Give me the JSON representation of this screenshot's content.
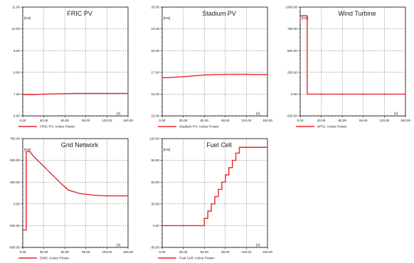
{
  "chart_data": [
    {
      "type": "line",
      "title": "FRIC PV",
      "unit_label": "[kW]",
      "x_unit_label": "[s]",
      "xlim": [
        0,
        150
      ],
      "ylim": [
        6,
        11
      ],
      "x_ticks": [
        "0.00",
        "30.00",
        "60.00",
        "90.00",
        "120.00",
        "150.00"
      ],
      "y_ticks": [
        "6.00",
        "7.00",
        "8.00",
        "9.00",
        "10.00",
        "11.00"
      ],
      "legend": "FRIC PV: Active Power",
      "color": "#e8252b",
      "series": [
        {
          "name": "FRIC PV: Active Power",
          "x": [
            0,
            15,
            30,
            45,
            60,
            75,
            90,
            105,
            120,
            135,
            150
          ],
          "y": [
            6.98,
            6.98,
            7.0,
            7.01,
            7.02,
            7.03,
            7.03,
            7.03,
            7.03,
            7.03,
            7.03
          ]
        }
      ]
    },
    {
      "type": "line",
      "title": "Stadium PV",
      "unit_label": "[kW]",
      "x_unit_label": "[s]",
      "xlim": [
        0,
        150
      ],
      "ylim": [
        15,
        20
      ],
      "x_ticks": [
        "0.00",
        "30.00",
        "60.00",
        "90.00",
        "120.00",
        "150.00"
      ],
      "y_ticks": [
        "15.00",
        "16.00",
        "17.00",
        "18.00",
        "19.00",
        "20.00"
      ],
      "legend": "Stadium PV: Active Power",
      "color": "#e8252b",
      "series": [
        {
          "name": "Stadium PV: Active Power",
          "x": [
            0,
            15,
            30,
            45,
            60,
            75,
            90,
            105,
            120,
            135,
            150
          ],
          "y": [
            16.75,
            16.77,
            16.8,
            16.84,
            16.88,
            16.9,
            16.91,
            16.91,
            16.91,
            16.9,
            16.9
          ]
        }
      ]
    },
    {
      "type": "line",
      "title": "Wind Turbine",
      "unit_label": "[kW]",
      "x_unit_label": "[s]",
      "xlim": [
        0,
        150
      ],
      "ylim": [
        -250,
        1000
      ],
      "x_ticks": [
        "0.00",
        "30.00",
        "60.00",
        "90.00",
        "120.00",
        "150.00"
      ],
      "y_ticks": [
        "-250.00",
        "0.00",
        "250.00",
        "500.00",
        "750.00",
        "1000.00"
      ],
      "legend": "WTG: Active Power",
      "color": "#e8252b",
      "series": [
        {
          "name": "WTG: Active Power",
          "x": [
            0,
            10,
            10,
            150
          ],
          "y": [
            900,
            900,
            0,
            0
          ]
        }
      ]
    },
    {
      "type": "line",
      "title": "Grid Network",
      "unit_label": "[kW]",
      "x_unit_label": "[s]",
      "xlim": [
        0,
        150
      ],
      "ylim": [
        -500,
        750
      ],
      "x_ticks": [
        "0.00",
        "30.00",
        "60.00",
        "90.00",
        "120.00",
        "150.00"
      ],
      "y_ticks": [
        "-500.00",
        "-250.00",
        "0.00",
        "250.00",
        "500.00",
        "750.00"
      ],
      "legend": "DNO: Active Power",
      "color": "#e8252b",
      "series": [
        {
          "name": "DNO: Active Power",
          "x": [
            0,
            5,
            5,
            10,
            15,
            15,
            20,
            20,
            25,
            25,
            30,
            30,
            35,
            35,
            40,
            40,
            45,
            45,
            50,
            50,
            55,
            55,
            60,
            60,
            65,
            65,
            70,
            75,
            80,
            90,
            100,
            110,
            120,
            130,
            140,
            150
          ],
          "y": [
            -300,
            -300,
            600,
            600,
            550,
            550,
            510,
            510,
            470,
            470,
            430,
            430,
            390,
            390,
            350,
            350,
            310,
            310,
            270,
            270,
            230,
            230,
            195,
            195,
            160,
            160,
            145,
            135,
            120,
            110,
            100,
            95,
            92,
            92,
            92,
            92
          ]
        }
      ]
    },
    {
      "type": "line",
      "title": "Fuel Cell",
      "unit_label": "[kW]",
      "x_unit_label": "[s]",
      "xlim": [
        0,
        150
      ],
      "ylim": [
        -30,
        120
      ],
      "x_ticks": [
        "0.00",
        "30.00",
        "60.00",
        "90.00",
        "120.00",
        "150.00"
      ],
      "y_ticks": [
        "-30.00",
        "0.00",
        "30.00",
        "60.00",
        "90.00",
        "120.00"
      ],
      "legend": "Fuel Cell: Active Power",
      "color": "#e8252b",
      "series": [
        {
          "name": "Fuel Cell: Active Power",
          "x": [
            0,
            60,
            60,
            65,
            65,
            70,
            70,
            75,
            75,
            80,
            80,
            85,
            85,
            90,
            90,
            95,
            95,
            100,
            100,
            105,
            105,
            110,
            110,
            150
          ],
          "y": [
            0,
            0,
            10,
            10,
            20,
            20,
            30,
            30,
            40,
            40,
            50,
            50,
            60,
            60,
            70,
            70,
            80,
            80,
            90,
            90,
            100,
            100,
            108,
            108
          ]
        }
      ]
    }
  ]
}
